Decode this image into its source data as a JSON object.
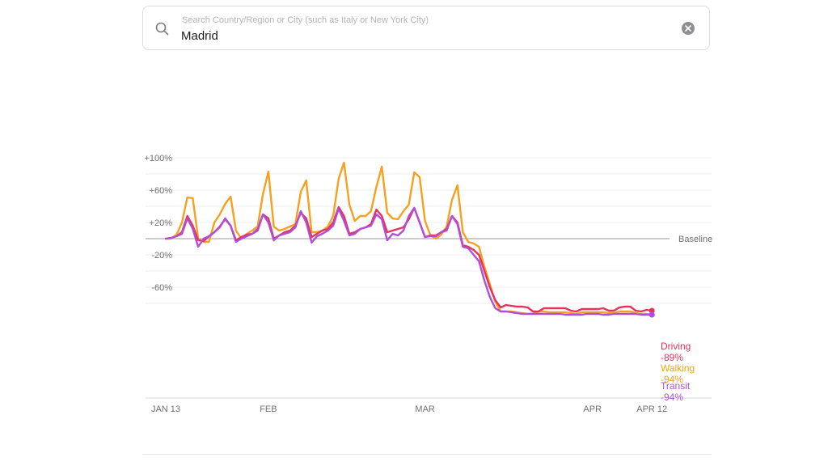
{
  "search": {
    "placeholder": "Search Country/Region or City (such as Italy or New York City)",
    "value": "Madrid",
    "icon": "search-icon",
    "clear_icon": "close-icon"
  },
  "colors": {
    "driving": "#e8315b",
    "walking": "#f5a11f",
    "transit": "#b04ed9",
    "grid": "#ececec",
    "baseline": "#9a9a9a",
    "axis_text": "#6f6f6f"
  },
  "chart_data": {
    "type": "line",
    "title": "",
    "xlabel": "",
    "ylabel": "",
    "ylim": [
      -100,
      105
    ],
    "grid": true,
    "y_ticks": [
      {
        "value": 100,
        "label": "+100%"
      },
      {
        "value": 60,
        "label": "+60%"
      },
      {
        "value": 20,
        "label": "+20%"
      },
      {
        "value": -20,
        "label": "-20%"
      },
      {
        "value": -60,
        "label": "-60%"
      }
    ],
    "x_ticks": [
      {
        "day": 0,
        "label": "JAN 13"
      },
      {
        "day": 19,
        "label": "FEB"
      },
      {
        "day": 48,
        "label": "MAR"
      },
      {
        "day": 79,
        "label": "APR"
      },
      {
        "day": 90,
        "label": "APR 12"
      }
    ],
    "baseline_label": "Baseline",
    "start_date": "2020-01-13",
    "series": [
      {
        "name": "Driving",
        "key": "driving",
        "end_label": "-89%",
        "values": [
          0,
          1,
          3,
          8,
          28,
          16,
          -2,
          -3,
          3,
          8,
          15,
          24,
          16,
          -2,
          2,
          5,
          6,
          10,
          30,
          25,
          0,
          4,
          8,
          10,
          16,
          32,
          25,
          2,
          6,
          10,
          12,
          20,
          39,
          28,
          6,
          8,
          12,
          14,
          18,
          36,
          28,
          8,
          10,
          12,
          14,
          24,
          38,
          20,
          2,
          4,
          4,
          8,
          12,
          28,
          20,
          -8,
          -10,
          -14,
          -20,
          -40,
          -60,
          -76,
          -85,
          -82,
          -83,
          -84,
          -84,
          -85,
          -90,
          -90,
          -86,
          -86,
          -86,
          -86,
          -86,
          -89,
          -90,
          -87,
          -87,
          -87,
          -87,
          -86,
          -89,
          -89,
          -85,
          -84,
          -84,
          -89,
          -90,
          -88,
          -89
        ]
      },
      {
        "name": "Walking",
        "key": "walking",
        "end_label": "-94%",
        "values": [
          0,
          0,
          5,
          20,
          51,
          50,
          0,
          -4,
          -4,
          20,
          30,
          43,
          52,
          10,
          0,
          6,
          10,
          15,
          55,
          83,
          15,
          10,
          12,
          15,
          18,
          58,
          72,
          8,
          8,
          10,
          15,
          28,
          74,
          94,
          42,
          22,
          28,
          28,
          34,
          64,
          89,
          32,
          25,
          24,
          34,
          42,
          82,
          76,
          22,
          4,
          0,
          5,
          15,
          48,
          66,
          8,
          -4,
          -6,
          -10,
          -35,
          -56,
          -78,
          -90,
          -90,
          -90,
          -91,
          -92,
          -93,
          -93,
          -90,
          -90,
          -91,
          -91,
          -91,
          -91,
          -92,
          -93,
          -91,
          -91,
          -91,
          -91,
          -91,
          -92,
          -92,
          -90,
          -90,
          -90,
          -92,
          -93,
          -93,
          -94
        ]
      },
      {
        "name": "Transit",
        "key": "transit",
        "end_label": "-94%",
        "values": [
          0,
          1,
          3,
          6,
          25,
          12,
          -10,
          0,
          3,
          8,
          14,
          25,
          16,
          -4,
          0,
          3,
          6,
          12,
          30,
          20,
          -2,
          4,
          6,
          8,
          14,
          34,
          20,
          -5,
          3,
          6,
          10,
          16,
          37,
          22,
          4,
          6,
          12,
          14,
          16,
          30,
          24,
          -2,
          6,
          4,
          10,
          28,
          38,
          20,
          2,
          3,
          3,
          8,
          10,
          28,
          18,
          -10,
          -12,
          -20,
          -28,
          -52,
          -72,
          -86,
          -90,
          -90,
          -91,
          -92,
          -93,
          -93,
          -93,
          -93,
          -93,
          -93,
          -93,
          -93,
          -94,
          -94,
          -94,
          -94,
          -93,
          -93,
          -93,
          -94,
          -94,
          -93,
          -93,
          -93,
          -93,
          -93,
          -94,
          -94,
          -94
        ]
      }
    ]
  }
}
